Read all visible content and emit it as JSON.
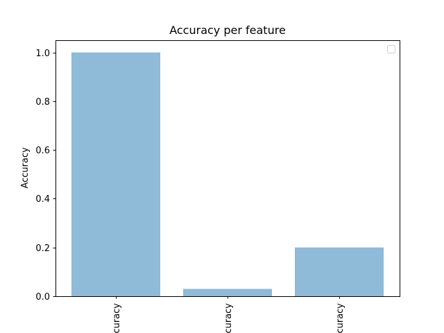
{
  "chart_data": {
    "type": "bar",
    "title": "Accuracy per feature",
    "xlabel": "",
    "ylabel": "Accuracy",
    "categories": [
      "accuracy",
      "accuracy",
      "accuracy"
    ],
    "values": [
      1.0,
      0.03,
      0.2
    ],
    "ylim": [
      0,
      1.05
    ],
    "yticks": [
      "0.0",
      "0.2",
      "0.4",
      "0.6",
      "0.8",
      "1.0"
    ],
    "grid": false,
    "legend": {
      "placement": "upper right",
      "entries": []
    },
    "colors": {
      "bar": "#8fbad8",
      "axis": "#000000",
      "background": "#ffffff",
      "legend_border": "#cccccc"
    }
  }
}
